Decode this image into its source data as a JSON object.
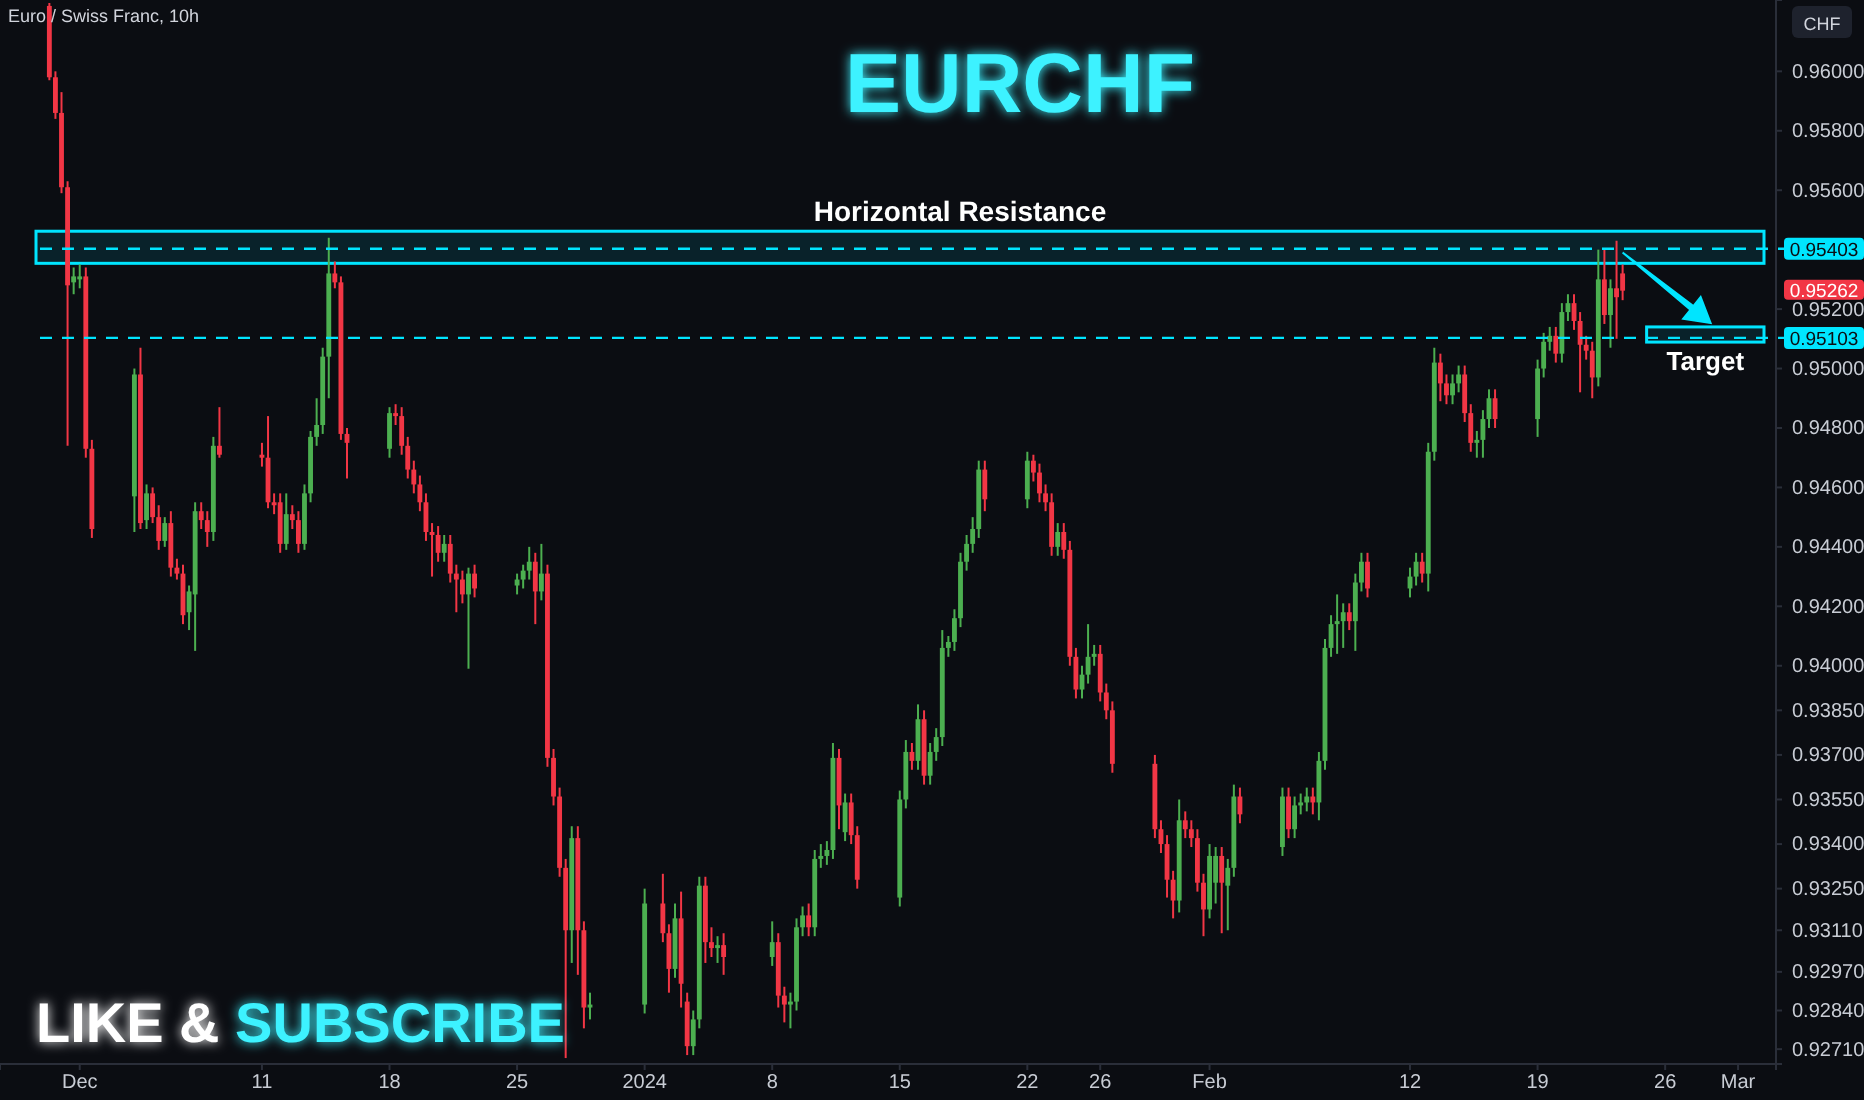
{
  "chart_data": {
    "type": "candlestick",
    "title": "EURCHF",
    "annotations": [
      "Euro / Swiss Franc, 10h",
      "LIKE & SUBSCRIBE",
      "CHF",
      "0.95262"
    ],
    "x": [
      "2023-11-29T08:00",
      "2023-11-29T16:00",
      "2023-11-30T00:00",
      "2023-11-30T08:00",
      "2023-11-30T16:00",
      "2023-12-01T00:00",
      "2023-12-01T08:00",
      "2023-12-01T16:00",
      "2023-12-04T00:00",
      "2023-12-04T08:00",
      "2023-12-04T16:00",
      "2023-12-05T00:00",
      "2023-12-05T08:00",
      "2023-12-05T16:00",
      "2023-12-06T00:00",
      "2023-12-06T08:00",
      "2023-12-06T16:00",
      "2023-12-07T00:00",
      "2023-12-07T08:00",
      "2023-12-07T16:00",
      "2023-12-08T00:00",
      "2023-12-08T08:00",
      "2023-12-08T16:00",
      "2023-12-11T00:00",
      "2023-12-11T08:00",
      "2023-12-11T16:00",
      "2023-12-12T00:00",
      "2023-12-12T08:00",
      "2023-12-12T16:00",
      "2023-12-13T00:00",
      "2023-12-13T08:00",
      "2023-12-13T16:00",
      "2023-12-14T00:00",
      "2023-12-14T08:00",
      "2023-12-14T16:00",
      "2023-12-15T00:00",
      "2023-12-15T08:00",
      "2023-12-15T16:00",
      "2023-12-18T00:00",
      "2023-12-18T08:00",
      "2023-12-18T16:00",
      "2023-12-19T00:00",
      "2023-12-19T08:00",
      "2023-12-19T16:00",
      "2023-12-20T00:00",
      "2023-12-20T08:00",
      "2023-12-20T16:00",
      "2023-12-21T00:00",
      "2023-12-21T08:00",
      "2023-12-21T16:00",
      "2023-12-22T00:00",
      "2023-12-22T08:00",
      "2023-12-22T16:00",
      "2023-12-25T00:00",
      "2023-12-25T08:00",
      "2023-12-25T16:00",
      "2023-12-26T00:00",
      "2023-12-26T08:00",
      "2023-12-26T16:00",
      "2023-12-27T00:00",
      "2023-12-27T08:00",
      "2023-12-27T16:00",
      "2023-12-28T00:00",
      "2023-12-28T08:00",
      "2023-12-28T16:00",
      "2023-12-29T00:00",
      "2024-01-01T00:00",
      "2024-01-02T00:00",
      "2024-01-02T08:00",
      "2024-01-02T16:00",
      "2024-01-03T00:00",
      "2024-01-03T08:00",
      "2024-01-03T16:00",
      "2024-01-04T00:00",
      "2024-01-04T08:00",
      "2024-01-04T16:00",
      "2024-01-05T00:00",
      "2024-01-05T08:00",
      "2024-01-08T00:00",
      "2024-01-08T08:00",
      "2024-01-08T16:00",
      "2024-01-09T00:00",
      "2024-01-09T08:00",
      "2024-01-09T16:00",
      "2024-01-10T00:00",
      "2024-01-10T08:00",
      "2024-01-10T16:00",
      "2024-01-11T00:00",
      "2024-01-11T08:00",
      "2024-01-11T16:00",
      "2024-01-12T00:00",
      "2024-01-12T08:00",
      "2024-01-12T16:00",
      "2024-01-15T00:00",
      "2024-01-15T08:00",
      "2024-01-15T16:00",
      "2024-01-16T00:00",
      "2024-01-16T08:00",
      "2024-01-16T16:00",
      "2024-01-17T00:00",
      "2024-01-17T08:00",
      "2024-01-17T16:00",
      "2024-01-18T00:00",
      "2024-01-18T08:00",
      "2024-01-18T16:00",
      "2024-01-19T00:00",
      "2024-01-19T08:00",
      "2024-01-19T16:00",
      "2024-01-22T00:00",
      "2024-01-22T08:00",
      "2024-01-22T16:00",
      "2024-01-23T00:00",
      "2024-01-23T08:00",
      "2024-01-23T16:00",
      "2024-01-24T00:00",
      "2024-01-24T08:00",
      "2024-01-24T16:00",
      "2024-01-25T00:00",
      "2024-01-25T08:00",
      "2024-01-25T16:00",
      "2024-01-26T00:00",
      "2024-01-26T08:00",
      "2024-01-26T16:00",
      "2024-01-29T00:00",
      "2024-01-29T08:00",
      "2024-01-29T16:00",
      "2024-01-30T00:00",
      "2024-01-30T08:00",
      "2024-01-30T16:00",
      "2024-01-31T00:00",
      "2024-01-31T08:00",
      "2024-01-31T16:00",
      "2024-02-01T00:00",
      "2024-02-01T08:00",
      "2024-02-01T16:00",
      "2024-02-02T00:00",
      "2024-02-02T08:00",
      "2024-02-02T16:00",
      "2024-02-05T00:00",
      "2024-02-05T08:00",
      "2024-02-05T16:00",
      "2024-02-06T00:00",
      "2024-02-06T08:00",
      "2024-02-06T16:00",
      "2024-02-07T00:00",
      "2024-02-07T08:00",
      "2024-02-07T16:00",
      "2024-02-08T00:00",
      "2024-02-08T08:00",
      "2024-02-08T16:00",
      "2024-02-09T00:00",
      "2024-02-09T08:00",
      "2024-02-09T16:00",
      "2024-02-12T00:00",
      "2024-02-12T08:00",
      "2024-02-12T16:00",
      "2024-02-13T00:00",
      "2024-02-13T08:00",
      "2024-02-13T16:00",
      "2024-02-14T00:00",
      "2024-02-14T08:00",
      "2024-02-14T16:00",
      "2024-02-15T00:00",
      "2024-02-15T08:00",
      "2024-02-15T16:00",
      "2024-02-16T00:00",
      "2024-02-16T08:00",
      "2024-02-16T16:00",
      "2024-02-19T00:00",
      "2024-02-19T08:00",
      "2024-02-19T16:00",
      "2024-02-20T00:00",
      "2024-02-20T08:00",
      "2024-02-20T16:00",
      "2024-02-21T00:00",
      "2024-02-21T08:00",
      "2024-02-21T16:00",
      "2024-02-22T00:00",
      "2024-02-22T08:00",
      "2024-02-22T16:00",
      "2024-02-23T00:00",
      "2024-02-23T08:00",
      "2024-02-23T16:00"
    ],
    "ohlc": [
      [
        0.9622,
        0.9623,
        0.9597,
        0.9598
      ],
      [
        0.9598,
        0.96,
        0.9584,
        0.9586
      ],
      [
        0.9586,
        0.9593,
        0.9559,
        0.9561
      ],
      [
        0.9561,
        0.9563,
        0.9474,
        0.9528
      ],
      [
        0.9529,
        0.9534,
        0.9525,
        0.9531
      ],
      [
        0.953,
        0.9535,
        0.9527,
        0.9531
      ],
      [
        0.9531,
        0.9534,
        0.947,
        0.9473
      ],
      [
        0.9473,
        0.9476,
        0.9443,
        0.9446
      ],
      [
        0.9457,
        0.95,
        0.9445,
        0.9498
      ],
      [
        0.9498,
        0.9507,
        0.9446,
        0.9448
      ],
      [
        0.9449,
        0.9461,
        0.9446,
        0.9458
      ],
      [
        0.9458,
        0.946,
        0.9448,
        0.945
      ],
      [
        0.945,
        0.9454,
        0.9439,
        0.9442
      ],
      [
        0.9442,
        0.945,
        0.944,
        0.9448
      ],
      [
        0.9448,
        0.9452,
        0.943,
        0.9433
      ],
      [
        0.9433,
        0.9436,
        0.9429,
        0.9431
      ],
      [
        0.9431,
        0.9434,
        0.9414,
        0.9417
      ],
      [
        0.9418,
        0.9427,
        0.9412,
        0.9425
      ],
      [
        0.9424,
        0.9455,
        0.9405,
        0.9452
      ],
      [
        0.9452,
        0.9455,
        0.9446,
        0.9449
      ],
      [
        0.9449,
        0.9452,
        0.944,
        0.9445
      ],
      [
        0.9445,
        0.9477,
        0.9442,
        0.9474
      ],
      [
        0.9474,
        0.9487,
        0.947,
        0.9471
      ],
      [
        0.9471,
        0.9475,
        0.9467,
        0.947
      ],
      [
        0.947,
        0.9484,
        0.9453,
        0.9455
      ],
      [
        0.9455,
        0.9458,
        0.9451,
        0.9454
      ],
      [
        0.9455,
        0.9458,
        0.9438,
        0.9441
      ],
      [
        0.9441,
        0.9458,
        0.9439,
        0.9451
      ],
      [
        0.9451,
        0.9454,
        0.9446,
        0.9449
      ],
      [
        0.9449,
        0.9452,
        0.9438,
        0.9441
      ],
      [
        0.9441,
        0.9461,
        0.9439,
        0.9458
      ],
      [
        0.9458,
        0.9479,
        0.9455,
        0.9477
      ],
      [
        0.9477,
        0.949,
        0.9474,
        0.9481
      ],
      [
        0.9481,
        0.9507,
        0.9478,
        0.9504
      ],
      [
        0.9504,
        0.9544,
        0.949,
        0.9532
      ],
      [
        0.9532,
        0.9536,
        0.9527,
        0.9529
      ],
      [
        0.9529,
        0.9531,
        0.9476,
        0.9478
      ],
      [
        0.9478,
        0.948,
        0.9463,
        0.9475
      ],
      [
        0.9473,
        0.9487,
        0.947,
        0.9485
      ],
      [
        0.9485,
        0.9488,
        0.9481,
        0.9484
      ],
      [
        0.9484,
        0.9487,
        0.9471,
        0.9474
      ],
      [
        0.9474,
        0.9477,
        0.9463,
        0.9466
      ],
      [
        0.9466,
        0.9469,
        0.9458,
        0.9461
      ],
      [
        0.9461,
        0.9464,
        0.9452,
        0.9455
      ],
      [
        0.9455,
        0.9458,
        0.9442,
        0.9445
      ],
      [
        0.9445,
        0.9448,
        0.943,
        0.9444
      ],
      [
        0.9444,
        0.9447,
        0.9435,
        0.9438
      ],
      [
        0.9438,
        0.9444,
        0.9435,
        0.9441
      ],
      [
        0.9441,
        0.9444,
        0.9428,
        0.9431
      ],
      [
        0.9431,
        0.9434,
        0.9418,
        0.9429
      ],
      [
        0.9429,
        0.9432,
        0.9421,
        0.9424
      ],
      [
        0.9424,
        0.9433,
        0.9399,
        0.9431
      ],
      [
        0.9431,
        0.9434,
        0.9423,
        0.9426
      ],
      [
        0.9427,
        0.9431,
        0.9424,
        0.9429
      ],
      [
        0.9429,
        0.9434,
        0.9426,
        0.9432
      ],
      [
        0.9432,
        0.944,
        0.9429,
        0.9435
      ],
      [
        0.9435,
        0.9438,
        0.9414,
        0.9425
      ],
      [
        0.9425,
        0.9441,
        0.9422,
        0.9431
      ],
      [
        0.9431,
        0.9434,
        0.9366,
        0.9369
      ],
      [
        0.9369,
        0.9372,
        0.9353,
        0.9356
      ],
      [
        0.9356,
        0.9359,
        0.9329,
        0.9332
      ],
      [
        0.9332,
        0.9335,
        0.9268,
        0.9311
      ],
      [
        0.9311,
        0.9346,
        0.93,
        0.9342
      ],
      [
        0.9342,
        0.9346,
        0.9296,
        0.9311
      ],
      [
        0.9311,
        0.9314,
        0.9278,
        0.9285
      ],
      [
        0.9285,
        0.929,
        0.9281,
        0.9286
      ],
      [
        0.9286,
        0.9325,
        0.9283,
        0.932
      ],
      [
        0.932,
        0.933,
        0.9307,
        0.931
      ],
      [
        0.931,
        0.9313,
        0.929,
        0.9298
      ],
      [
        0.9298,
        0.932,
        0.9295,
        0.9315
      ],
      [
        0.9315,
        0.9324,
        0.9285,
        0.9293
      ],
      [
        0.9287,
        0.929,
        0.9269,
        0.9272
      ],
      [
        0.9272,
        0.9284,
        0.9269,
        0.9281
      ],
      [
        0.9281,
        0.9329,
        0.9278,
        0.9326
      ],
      [
        0.9326,
        0.9329,
        0.93,
        0.9307
      ],
      [
        0.9307,
        0.9312,
        0.9302,
        0.9305
      ],
      [
        0.9305,
        0.9309,
        0.93,
        0.9306
      ],
      [
        0.9306,
        0.931,
        0.9296,
        0.9302
      ],
      [
        0.9302,
        0.9314,
        0.9299,
        0.9307
      ],
      [
        0.9307,
        0.931,
        0.9285,
        0.9289
      ],
      [
        0.9289,
        0.9292,
        0.928,
        0.9286
      ],
      [
        0.9286,
        0.929,
        0.9278,
        0.9287
      ],
      [
        0.9287,
        0.9315,
        0.9284,
        0.9312
      ],
      [
        0.9312,
        0.9319,
        0.9309,
        0.9316
      ],
      [
        0.9316,
        0.932,
        0.9309,
        0.9312
      ],
      [
        0.9312,
        0.9338,
        0.9309,
        0.9335
      ],
      [
        0.9335,
        0.934,
        0.9332,
        0.9336
      ],
      [
        0.9336,
        0.9341,
        0.9333,
        0.9338
      ],
      [
        0.9338,
        0.9374,
        0.9335,
        0.9369
      ],
      [
        0.9369,
        0.9372,
        0.9345,
        0.9353
      ],
      [
        0.9344,
        0.9357,
        0.9341,
        0.9354
      ],
      [
        0.9354,
        0.9357,
        0.934,
        0.9343
      ],
      [
        0.9343,
        0.9346,
        0.9325,
        0.9328
      ],
      [
        0.9322,
        0.9358,
        0.9319,
        0.9355
      ],
      [
        0.9355,
        0.9375,
        0.9352,
        0.9371
      ],
      [
        0.9371,
        0.9374,
        0.9365,
        0.9368
      ],
      [
        0.9368,
        0.9387,
        0.9365,
        0.9382
      ],
      [
        0.9382,
        0.9385,
        0.936,
        0.9363
      ],
      [
        0.9363,
        0.9374,
        0.936,
        0.9371
      ],
      [
        0.9371,
        0.9379,
        0.9368,
        0.9376
      ],
      [
        0.9376,
        0.9412,
        0.9373,
        0.9406
      ],
      [
        0.9406,
        0.941,
        0.9403,
        0.9408
      ],
      [
        0.9408,
        0.9419,
        0.9405,
        0.9416
      ],
      [
        0.9416,
        0.9438,
        0.9413,
        0.9435
      ],
      [
        0.9435,
        0.9444,
        0.9432,
        0.9441
      ],
      [
        0.9441,
        0.945,
        0.9438,
        0.9446
      ],
      [
        0.9446,
        0.9469,
        0.9443,
        0.9466
      ],
      [
        0.9466,
        0.9469,
        0.9452,
        0.9456
      ],
      [
        0.9456,
        0.9472,
        0.9453,
        0.9469
      ],
      [
        0.9469,
        0.9471,
        0.9462,
        0.9465
      ],
      [
        0.9465,
        0.9468,
        0.9455,
        0.9458
      ],
      [
        0.9458,
        0.9461,
        0.9452,
        0.9455
      ],
      [
        0.9455,
        0.9458,
        0.9437,
        0.944
      ],
      [
        0.944,
        0.9448,
        0.9437,
        0.9445
      ],
      [
        0.9445,
        0.9448,
        0.9436,
        0.9439
      ],
      [
        0.9439,
        0.9442,
        0.94,
        0.9403
      ],
      [
        0.9403,
        0.9406,
        0.9389,
        0.9392
      ],
      [
        0.9392,
        0.94,
        0.9389,
        0.9397
      ],
      [
        0.9397,
        0.9414,
        0.9394,
        0.9403
      ],
      [
        0.9403,
        0.9407,
        0.94,
        0.9404
      ],
      [
        0.9404,
        0.9407,
        0.9388,
        0.9391
      ],
      [
        0.9391,
        0.9394,
        0.9382,
        0.9385
      ],
      [
        0.9385,
        0.9388,
        0.9364,
        0.9367
      ],
      [
        0.9367,
        0.937,
        0.9342,
        0.9345
      ],
      [
        0.9345,
        0.9348,
        0.9337,
        0.934
      ],
      [
        0.934,
        0.9343,
        0.9322,
        0.9328
      ],
      [
        0.9328,
        0.9331,
        0.9315,
        0.9321
      ],
      [
        0.9321,
        0.9355,
        0.9317,
        0.9348
      ],
      [
        0.9348,
        0.9351,
        0.9342,
        0.9345
      ],
      [
        0.9345,
        0.9348,
        0.9339,
        0.9342
      ],
      [
        0.9342,
        0.9345,
        0.9324,
        0.9327
      ],
      [
        0.9327,
        0.933,
        0.9309,
        0.9318
      ],
      [
        0.9318,
        0.934,
        0.9315,
        0.9336
      ],
      [
        0.9327,
        0.9339,
        0.932,
        0.9336
      ],
      [
        0.9336,
        0.9339,
        0.931,
        0.9327
      ],
      [
        0.9326,
        0.9335,
        0.9311,
        0.9332
      ],
      [
        0.9332,
        0.936,
        0.9329,
        0.9356
      ],
      [
        0.9356,
        0.9359,
        0.9347,
        0.935
      ],
      [
        0.9339,
        0.9359,
        0.9336,
        0.9356
      ],
      [
        0.9356,
        0.9359,
        0.9342,
        0.9345
      ],
      [
        0.9345,
        0.9356,
        0.9342,
        0.9353
      ],
      [
        0.9353,
        0.9357,
        0.935,
        0.9354
      ],
      [
        0.9354,
        0.9359,
        0.9351,
        0.9356
      ],
      [
        0.9356,
        0.9359,
        0.935,
        0.9354
      ],
      [
        0.9354,
        0.9371,
        0.9348,
        0.9368
      ],
      [
        0.9368,
        0.9409,
        0.9365,
        0.9406
      ],
      [
        0.9406,
        0.9417,
        0.9403,
        0.9414
      ],
      [
        0.9414,
        0.9424,
        0.9404,
        0.9415
      ],
      [
        0.9415,
        0.9421,
        0.9406,
        0.9418
      ],
      [
        0.9418,
        0.9421,
        0.9412,
        0.9415
      ],
      [
        0.9415,
        0.9431,
        0.9405,
        0.9428
      ],
      [
        0.9428,
        0.9438,
        0.9425,
        0.9435
      ],
      [
        0.9435,
        0.9438,
        0.9423,
        0.9426
      ],
      [
        0.9426,
        0.9433,
        0.9423,
        0.943
      ],
      [
        0.943,
        0.9438,
        0.9427,
        0.9435
      ],
      [
        0.9435,
        0.9438,
        0.9428,
        0.9431
      ],
      [
        0.9431,
        0.9475,
        0.9425,
        0.9472
      ],
      [
        0.9472,
        0.9507,
        0.9469,
        0.9502
      ],
      [
        0.9502,
        0.9505,
        0.9489,
        0.9495
      ],
      [
        0.9495,
        0.9498,
        0.9488,
        0.9491
      ],
      [
        0.9491,
        0.9498,
        0.9488,
        0.9495
      ],
      [
        0.9495,
        0.9501,
        0.9492,
        0.9498
      ],
      [
        0.9498,
        0.9501,
        0.9482,
        0.9485
      ],
      [
        0.9485,
        0.9488,
        0.9472,
        0.9475
      ],
      [
        0.9475,
        0.9479,
        0.947,
        0.9476
      ],
      [
        0.9476,
        0.9486,
        0.947,
        0.9483
      ],
      [
        0.9483,
        0.9493,
        0.948,
        0.949
      ],
      [
        0.949,
        0.9493,
        0.948,
        0.9483
      ],
      [
        0.9483,
        0.9503,
        0.9477,
        0.95
      ],
      [
        0.95,
        0.9512,
        0.9497,
        0.9509
      ],
      [
        0.9509,
        0.9514,
        0.9506,
        0.9511
      ],
      [
        0.9511,
        0.9514,
        0.9502,
        0.9505
      ],
      [
        0.9505,
        0.9522,
        0.9502,
        0.9519
      ],
      [
        0.9519,
        0.9525,
        0.9516,
        0.9522
      ],
      [
        0.9522,
        0.9525,
        0.9513,
        0.9516
      ],
      [
        0.9516,
        0.9519,
        0.9492,
        0.9508
      ],
      [
        0.9508,
        0.9511,
        0.9503,
        0.9506
      ],
      [
        0.9506,
        0.9509,
        0.949,
        0.9497
      ],
      [
        0.9497,
        0.954,
        0.9494,
        0.953
      ],
      [
        0.953,
        0.954,
        0.9515,
        0.9518
      ],
      [
        0.9518,
        0.953,
        0.9507,
        0.9527
      ],
      [
        0.9527,
        0.9543,
        0.951,
        0.9524
      ],
      [
        0.9532,
        0.9535,
        0.9523,
        0.95262
      ]
    ],
    "xlim": [
      "2023-11-26T15:00",
      "2024-03-03T02:00"
    ],
    "xticks": [
      {
        "value": "2023-12-01",
        "label": "Dec"
      },
      {
        "value": "2023-12-11",
        "label": "11"
      },
      {
        "value": "2023-12-18",
        "label": "18"
      },
      {
        "value": "2023-12-25",
        "label": "25"
      },
      {
        "value": "2024-01-01",
        "label": "2024"
      },
      {
        "value": "2024-01-08",
        "label": "8"
      },
      {
        "value": "2024-01-15",
        "label": "15"
      },
      {
        "value": "2024-01-22",
        "label": "22"
      },
      {
        "value": "2024-01-26",
        "label": "26"
      },
      {
        "value": "2024-02-01",
        "label": "Feb"
      },
      {
        "value": "2024-02-12",
        "label": "12"
      },
      {
        "value": "2024-02-19",
        "label": "19"
      },
      {
        "value": "2024-02-26",
        "label": "26"
      },
      {
        "value": "2024-03-01",
        "label": "Mar"
      }
    ],
    "ylim": [
      0.9266,
      0.9624
    ],
    "yticks": [
      {
        "value": 0.96,
        "label": "0.96000"
      },
      {
        "value": 0.958,
        "label": "0.95800"
      },
      {
        "value": 0.956,
        "label": "0.95600"
      },
      {
        "value": 0.952,
        "label": "0.95200"
      },
      {
        "value": 0.95,
        "label": "0.95000"
      },
      {
        "value": 0.948,
        "label": "0.94800"
      },
      {
        "value": 0.946,
        "label": "0.94600"
      },
      {
        "value": 0.944,
        "label": "0.94400"
      },
      {
        "value": 0.942,
        "label": "0.94200"
      },
      {
        "value": 0.94,
        "label": "0.94000"
      },
      {
        "value": 0.9385,
        "label": "0.93850"
      },
      {
        "value": 0.937,
        "label": "0.93700"
      },
      {
        "value": 0.9355,
        "label": "0.93550"
      },
      {
        "value": 0.934,
        "label": "0.93400"
      },
      {
        "value": 0.9325,
        "label": "0.93250"
      },
      {
        "value": 0.9311,
        "label": "0.93110"
      },
      {
        "value": 0.9297,
        "label": "0.92970"
      },
      {
        "value": 0.9284,
        "label": "0.92840"
      },
      {
        "value": 0.9271,
        "label": "0.92710"
      }
    ],
    "bands": [
      {
        "axis": "y",
        "from": 0.95354,
        "to": 0.95462,
        "label": "Horizontal Resistance",
        "color": "#00e5ff"
      },
      {
        "axis": "y",
        "from": 0.95089,
        "to": 0.9514,
        "label": "Target",
        "color": "#00e5ff"
      }
    ],
    "ref_lines": [
      {
        "axis": "y",
        "value": 0.95403,
        "label": "0.95403",
        "color": "#00e5ff",
        "line_style": "dashed"
      },
      {
        "axis": "y",
        "value": 0.95103,
        "label": "0.95103",
        "color": "#00e5ff",
        "line_style": "dashed"
      }
    ]
  }
}
